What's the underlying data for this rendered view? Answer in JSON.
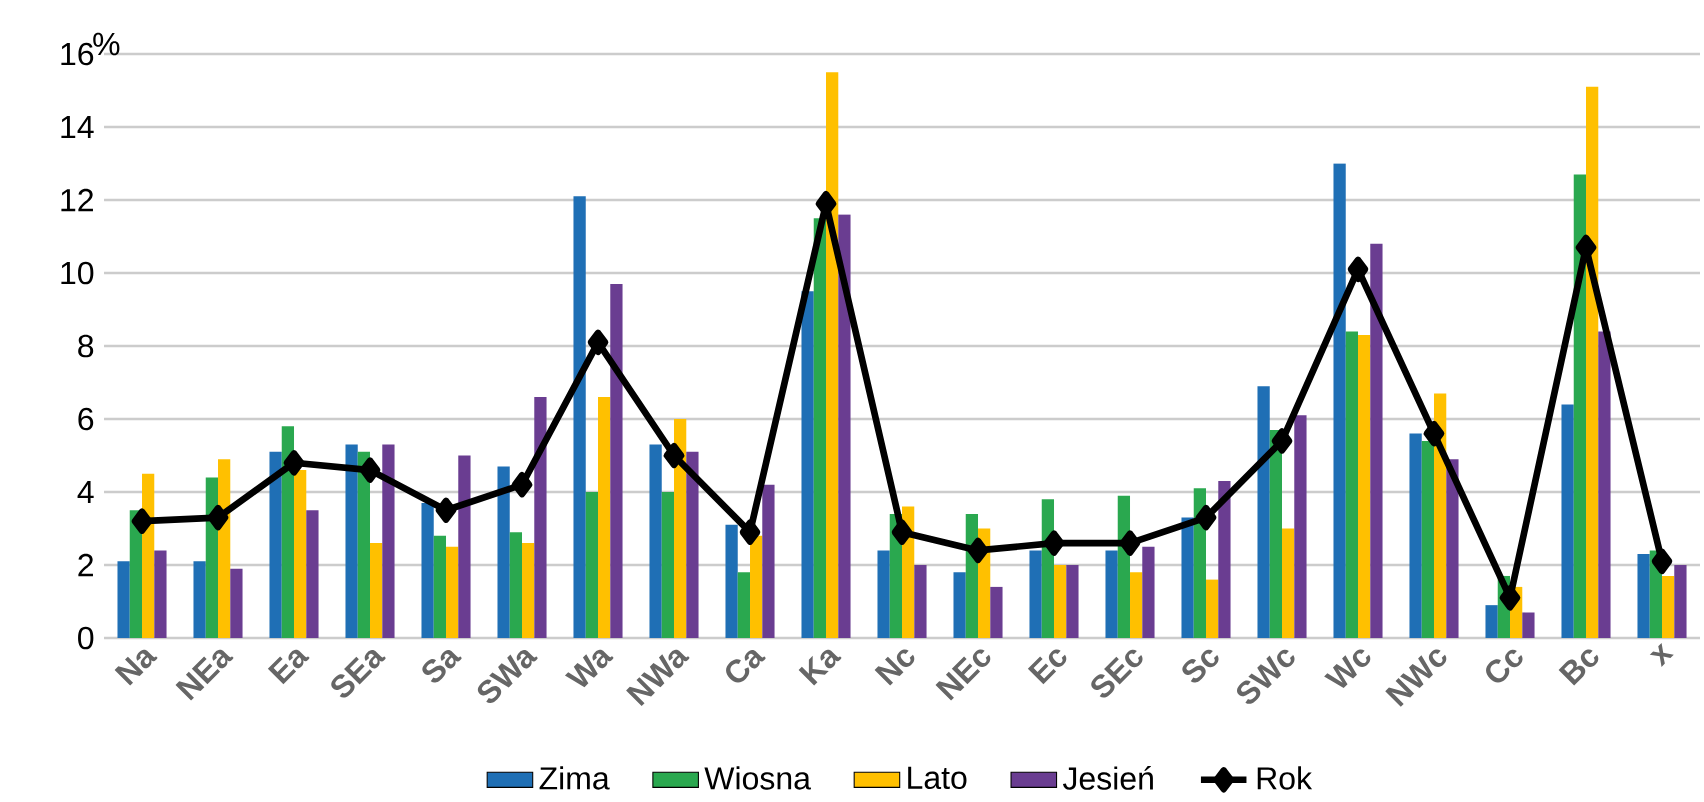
{
  "chart_data": {
    "type": "bar",
    "ylabel": "%",
    "categories": [
      "Na",
      "NEa",
      "Ea",
      "SEa",
      "Sa",
      "SWa",
      "Wa",
      "NWa",
      "Ca",
      "Ka",
      "Nc",
      "NEc",
      "Ec",
      "SEc",
      "Sc",
      "SWc",
      "Wc",
      "NWc",
      "Cc",
      "Bc",
      "x"
    ],
    "series": [
      {
        "name": "Zima",
        "color": "#1f6fb5",
        "values": [
          2.1,
          2.1,
          5.1,
          5.3,
          3.7,
          4.7,
          12.1,
          5.3,
          3.1,
          9.5,
          2.4,
          1.8,
          2.4,
          2.4,
          3.3,
          6.9,
          13.0,
          5.6,
          0.9,
          6.4,
          2.3
        ]
      },
      {
        "name": "Wiosna",
        "color": "#2aa84f",
        "values": [
          3.5,
          4.4,
          5.8,
          5.1,
          2.8,
          2.9,
          4.0,
          4.0,
          1.8,
          11.5,
          3.4,
          3.4,
          3.8,
          3.9,
          4.1,
          5.7,
          8.4,
          5.4,
          1.7,
          12.7,
          2.4
        ]
      },
      {
        "name": "Lato",
        "color": "#ffc000",
        "values": [
          4.5,
          4.9,
          4.6,
          2.6,
          2.5,
          2.6,
          6.6,
          6.0,
          2.8,
          15.5,
          3.6,
          3.0,
          2.0,
          1.8,
          1.6,
          3.0,
          8.3,
          6.7,
          1.4,
          15.1,
          1.7
        ]
      },
      {
        "name": "Jesień",
        "color": "#6a3d91",
        "values": [
          2.4,
          1.9,
          3.5,
          5.3,
          5.0,
          6.6,
          9.7,
          5.1,
          4.2,
          11.6,
          2.0,
          1.4,
          2.0,
          2.5,
          4.3,
          6.1,
          10.8,
          4.9,
          0.7,
          8.4,
          2.0
        ]
      },
      {
        "name": "Rok",
        "type": "line",
        "color": "#000000",
        "marker": "diamond",
        "values": [
          3.2,
          3.3,
          4.8,
          4.6,
          3.5,
          4.2,
          8.1,
          5.0,
          2.9,
          11.9,
          2.9,
          2.4,
          2.6,
          2.6,
          3.3,
          5.4,
          10.1,
          5.6,
          1.1,
          10.7,
          2.1
        ]
      }
    ],
    "ylim": [
      0,
      16
    ],
    "yticks": [
      0,
      2,
      4,
      6,
      8,
      10,
      12,
      14,
      16
    ],
    "grid": "y",
    "legend": "bottom"
  }
}
